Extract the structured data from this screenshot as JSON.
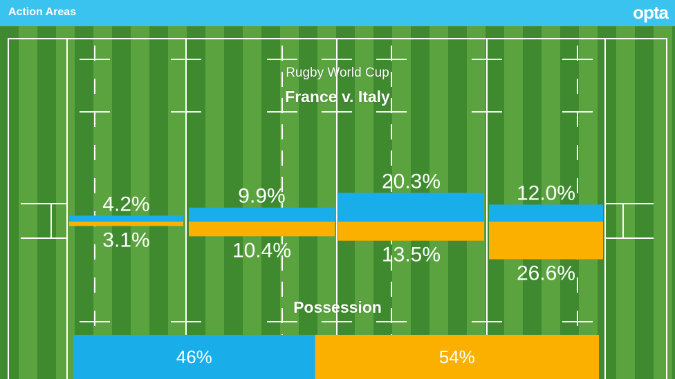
{
  "header": {
    "title": "Action Areas",
    "brand": "opta"
  },
  "colors": {
    "header": "#3bc3f0",
    "pitch_dark": "#3f8a2f",
    "pitch_light": "#5aa33f",
    "lines": "#ffffff",
    "france": "#19aeea",
    "italy": "#fbb000"
  },
  "chart_data": {
    "type": "bar",
    "subtitle": "Rugby World Cup",
    "title": "France v. Italy",
    "categories": [
      "zone-1",
      "zone-2",
      "zone-3",
      "zone-4"
    ],
    "series": [
      {
        "key": "france",
        "values": [
          4.2,
          9.9,
          20.3,
          12.0
        ],
        "labels": [
          "4.2%",
          "9.9%",
          "20.3%",
          "12.0%"
        ]
      },
      {
        "key": "italy",
        "values": [
          3.1,
          10.4,
          13.5,
          26.6
        ],
        "labels": [
          "3.1%",
          "10.4%",
          "13.5%",
          "26.6%"
        ]
      }
    ],
    "possession": {
      "label": "Possession",
      "values": [
        46,
        54
      ],
      "labels": [
        "46%",
        "54%"
      ]
    }
  }
}
